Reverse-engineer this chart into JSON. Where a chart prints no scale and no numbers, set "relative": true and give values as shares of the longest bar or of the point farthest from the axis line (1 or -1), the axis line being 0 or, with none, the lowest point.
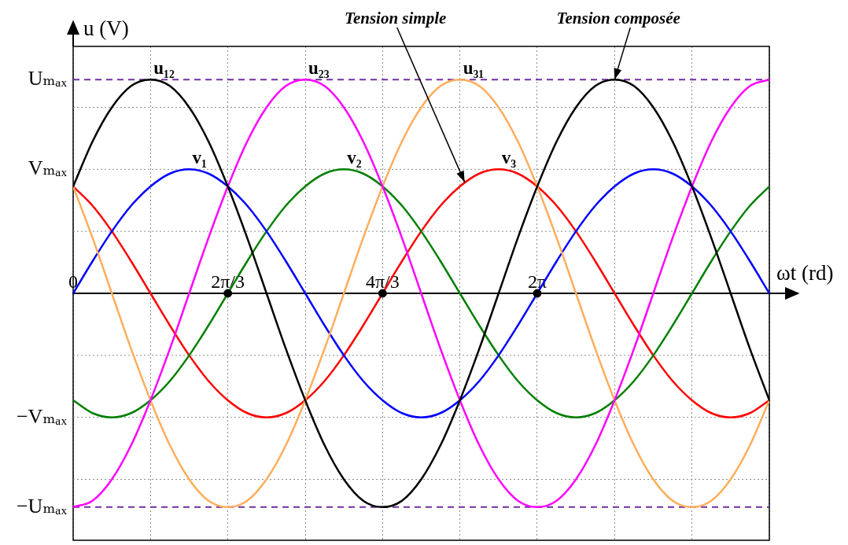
{
  "chart_data": {
    "type": "line",
    "relative": true,
    "xlabel": "ωt (rd)",
    "ylabel": "u (V)",
    "annotations": [
      {
        "text": "Tension simple",
        "x": 5.3,
        "y": 0.52
      },
      {
        "text": "Tension composée",
        "x": 7.33,
        "y": 1
      }
    ],
    "x": [
      0,
      0.262,
      0.524,
      0.785,
      1.047,
      1.309,
      1.571,
      1.833,
      2.094,
      2.356,
      2.618,
      2.88,
      3.142,
      3.403,
      3.665,
      3.927,
      4.189,
      4.451,
      4.712,
      4.974,
      5.236,
      5.498,
      5.76,
      6.021,
      6.283,
      6.545,
      6.807,
      7.069,
      7.33,
      7.592,
      7.854,
      8.116,
      8.378,
      8.639,
      8.901,
      9.163,
      9.425
    ],
    "series": [
      {
        "name": "u₁₂",
        "color": "#000000",
        "values": [
          0.5,
          0.71,
          0.87,
          0.97,
          1,
          0.97,
          0.87,
          0.71,
          0.5,
          0.26,
          0,
          -0.26,
          -0.5,
          -0.71,
          -0.87,
          -0.97,
          -1,
          -0.97,
          -0.87,
          -0.71,
          -0.5,
          -0.26,
          0,
          0.26,
          0.5,
          0.71,
          0.87,
          0.97,
          1,
          0.97,
          0.87,
          0.71,
          0.5,
          0.26,
          0,
          -0.26,
          -0.5
        ]
      },
      {
        "name": "u₂₃",
        "color": "#ff00ff",
        "values": [
          -1,
          -0.97,
          -0.87,
          -0.71,
          -0.5,
          -0.26,
          0,
          0.26,
          0.5,
          0.71,
          0.87,
          0.97,
          1,
          0.97,
          0.87,
          0.71,
          0.5,
          0.26,
          0,
          -0.26,
          -0.5,
          -0.71,
          -0.87,
          -0.97,
          -1,
          -0.97,
          -0.87,
          -0.71,
          -0.5,
          -0.26,
          0,
          0.26,
          0.5,
          0.71,
          0.87,
          0.97,
          1
        ]
      },
      {
        "name": "u₃₁",
        "color": "#ffad5c",
        "values": [
          0.5,
          0.26,
          0,
          -0.26,
          -0.5,
          -0.71,
          -0.87,
          -0.97,
          -1,
          -0.97,
          -0.87,
          -0.71,
          -0.5,
          -0.26,
          0,
          0.26,
          0.5,
          0.71,
          0.87,
          0.97,
          1,
          0.97,
          0.87,
          0.71,
          0.5,
          0.26,
          0,
          -0.26,
          -0.5,
          -0.71,
          -0.87,
          -0.97,
          -1,
          -0.97,
          -0.87,
          -0.71,
          -0.5
        ]
      },
      {
        "name": "v₁",
        "color": "#0000ff",
        "values": [
          0,
          0.15,
          0.29,
          0.41,
          0.5,
          0.56,
          0.58,
          0.56,
          0.5,
          0.41,
          0.29,
          0.15,
          0,
          -0.15,
          -0.29,
          -0.41,
          -0.5,
          -0.56,
          -0.58,
          -0.56,
          -0.5,
          -0.41,
          -0.29,
          -0.15,
          0,
          0.15,
          0.29,
          0.41,
          0.5,
          0.56,
          0.58,
          0.56,
          0.5,
          0.41,
          0.29,
          0.15,
          0
        ]
      },
      {
        "name": "v₂",
        "color": "#008000",
        "values": [
          -0.5,
          -0.56,
          -0.58,
          -0.56,
          -0.5,
          -0.41,
          -0.29,
          -0.15,
          0,
          0.15,
          0.29,
          0.41,
          0.5,
          0.56,
          0.58,
          0.56,
          0.5,
          0.41,
          0.29,
          0.15,
          0,
          -0.15,
          -0.29,
          -0.41,
          -0.5,
          -0.56,
          -0.58,
          -0.56,
          -0.5,
          -0.41,
          -0.29,
          -0.15,
          0,
          0.15,
          0.29,
          0.41,
          0.5
        ]
      },
      {
        "name": "v₃",
        "color": "#ff0000",
        "values": [
          0.5,
          0.41,
          0.29,
          0.15,
          0,
          -0.15,
          -0.29,
          -0.41,
          -0.5,
          -0.56,
          -0.58,
          -0.56,
          -0.5,
          -0.41,
          -0.29,
          -0.15,
          0,
          0.15,
          0.29,
          0.41,
          0.5,
          0.56,
          0.58,
          0.56,
          0.5,
          0.41,
          0.29,
          0.15,
          0,
          -0.15,
          -0.29,
          -0.41,
          -0.5,
          -0.56,
          -0.58,
          -0.56,
          -0.5
        ]
      },
      {
        "type": "scatter",
        "color": "#000000",
        "marker": "circle",
        "x": [
          2.094,
          4.189,
          6.283
        ],
        "values": [
          0,
          0,
          0
        ]
      }
    ],
    "xlim": [
      0,
      9.425
    ],
    "xticks": [
      {
        "value": 0,
        "label": "0"
      },
      {
        "value": 1.047,
        "label": null
      },
      {
        "value": 2.094,
        "label": "2π/3"
      },
      {
        "value": 3.142,
        "label": null
      },
      {
        "value": 4.189,
        "label": "4π/3"
      },
      {
        "value": 5.236,
        "label": null
      },
      {
        "value": 6.283,
        "label": "2π"
      },
      {
        "value": 7.33,
        "label": null
      },
      {
        "value": 8.378,
        "label": null
      },
      {
        "value": 9.425,
        "label": null
      }
    ],
    "grid": "x",
    "ref_lines": [
      {
        "axis": "y",
        "value": 1,
        "label": "Uₘₐₓ",
        "color": "#7030a0",
        "line_style": "dashed"
      },
      {
        "axis": "y",
        "value": 0.87,
        "color": "#8c8c8c",
        "line_style": "dotted"
      },
      {
        "axis": "y",
        "value": 0.58,
        "label": "Vₘₐₓ",
        "color": "#8c8c8c",
        "line_style": "dotted"
      },
      {
        "axis": "y",
        "value": 0.29,
        "color": "#8c8c8c",
        "line_style": "dotted"
      },
      {
        "axis": "y",
        "value": -0.29,
        "color": "#8c8c8c",
        "line_style": "dotted"
      },
      {
        "axis": "y",
        "value": -0.58,
        "label": "−Vₘₐₓ",
        "color": "#8c8c8c",
        "line_style": "dotted"
      },
      {
        "axis": "y",
        "value": -0.87,
        "color": "#8c8c8c",
        "line_style": "dotted"
      },
      {
        "axis": "y",
        "value": -1,
        "label": "−Uₘₐₓ",
        "color": "#7030a0",
        "line_style": "dashed"
      }
    ]
  }
}
